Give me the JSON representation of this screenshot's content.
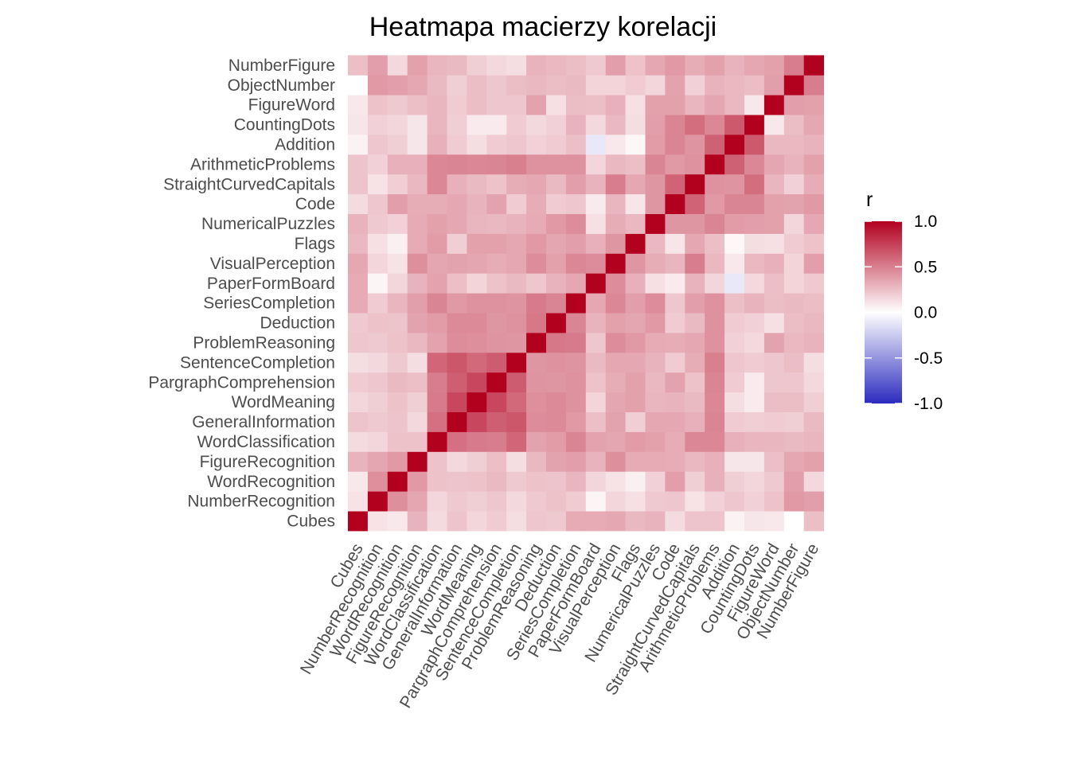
{
  "chart_data": {
    "type": "heatmap",
    "title": "Heatmapa macierzy korelacji",
    "xlabel": "",
    "ylabel": "",
    "variables": [
      "Cubes",
      "NumberRecognition",
      "WordRecognition",
      "FigureRecognition",
      "WordClassification",
      "GeneralInformation",
      "WordMeaning",
      "PargraphComprehension",
      "SentenceCompletion",
      "ProblemReasoning",
      "Deduction",
      "SeriesCompletion",
      "PaperFormBoard",
      "VisualPerception",
      "Flags",
      "NumericalPuzzles",
      "Code",
      "StraightCurvedCapitals",
      "ArithmeticProblems",
      "Addition",
      "CountingDots",
      "FigureWord",
      "ObjectNumber",
      "NumberFigure"
    ],
    "values": [
      [
        1.0,
        0.11,
        0.09,
        0.3,
        0.14,
        0.23,
        0.16,
        0.2,
        0.13,
        0.22,
        0.21,
        0.33,
        0.33,
        0.34,
        0.28,
        0.3,
        0.14,
        0.23,
        0.23,
        0.05,
        0.1,
        0.09,
        0.0,
        0.25
      ],
      [
        0.11,
        1.0,
        0.44,
        0.35,
        0.16,
        0.21,
        0.19,
        0.22,
        0.15,
        0.21,
        0.24,
        0.2,
        0.04,
        0.16,
        0.12,
        0.21,
        0.22,
        0.11,
        0.18,
        0.22,
        0.18,
        0.24,
        0.4,
        0.38
      ],
      [
        0.09,
        0.44,
        1.0,
        0.4,
        0.24,
        0.23,
        0.24,
        0.27,
        0.21,
        0.24,
        0.23,
        0.29,
        0.16,
        0.11,
        0.06,
        0.18,
        0.38,
        0.19,
        0.31,
        0.19,
        0.16,
        0.21,
        0.38,
        0.15
      ],
      [
        0.3,
        0.35,
        0.4,
        1.0,
        0.24,
        0.15,
        0.19,
        0.25,
        0.13,
        0.28,
        0.36,
        0.38,
        0.3,
        0.44,
        0.33,
        0.33,
        0.32,
        0.28,
        0.31,
        0.1,
        0.1,
        0.25,
        0.34,
        0.37
      ],
      [
        0.14,
        0.16,
        0.24,
        0.24,
        1.0,
        0.56,
        0.52,
        0.51,
        0.6,
        0.36,
        0.39,
        0.48,
        0.36,
        0.35,
        0.39,
        0.37,
        0.32,
        0.47,
        0.47,
        0.31,
        0.29,
        0.29,
        0.27,
        0.29
      ],
      [
        0.23,
        0.21,
        0.23,
        0.15,
        0.56,
        1.0,
        0.72,
        0.63,
        0.66,
        0.45,
        0.46,
        0.4,
        0.25,
        0.36,
        0.19,
        0.34,
        0.34,
        0.31,
        0.48,
        0.2,
        0.19,
        0.2,
        0.19,
        0.27
      ],
      [
        0.16,
        0.19,
        0.24,
        0.19,
        0.52,
        0.72,
        1.0,
        0.72,
        0.59,
        0.44,
        0.46,
        0.43,
        0.17,
        0.35,
        0.37,
        0.29,
        0.3,
        0.27,
        0.47,
        0.13,
        0.08,
        0.26,
        0.26,
        0.19
      ],
      [
        0.2,
        0.22,
        0.27,
        0.25,
        0.51,
        0.63,
        0.72,
        1.0,
        0.64,
        0.42,
        0.41,
        0.43,
        0.24,
        0.32,
        0.37,
        0.28,
        0.36,
        0.24,
        0.48,
        0.2,
        0.08,
        0.22,
        0.22,
        0.15
      ],
      [
        0.13,
        0.15,
        0.21,
        0.13,
        0.6,
        0.66,
        0.59,
        0.64,
        1.0,
        0.41,
        0.43,
        0.42,
        0.27,
        0.34,
        0.34,
        0.3,
        0.2,
        0.32,
        0.5,
        0.22,
        0.2,
        0.22,
        0.26,
        0.13
      ],
      [
        0.22,
        0.21,
        0.24,
        0.28,
        0.36,
        0.45,
        0.44,
        0.42,
        0.41,
        1.0,
        0.53,
        0.52,
        0.22,
        0.45,
        0.4,
        0.33,
        0.32,
        0.34,
        0.43,
        0.18,
        0.15,
        0.36,
        0.28,
        0.3
      ],
      [
        0.21,
        0.24,
        0.23,
        0.36,
        0.39,
        0.46,
        0.46,
        0.41,
        0.43,
        0.53,
        1.0,
        0.48,
        0.3,
        0.37,
        0.35,
        0.4,
        0.2,
        0.27,
        0.43,
        0.2,
        0.18,
        0.12,
        0.26,
        0.28
      ],
      [
        0.33,
        0.2,
        0.29,
        0.38,
        0.48,
        0.4,
        0.43,
        0.43,
        0.42,
        0.52,
        0.48,
        1.0,
        0.34,
        0.47,
        0.38,
        0.45,
        0.22,
        0.38,
        0.43,
        0.25,
        0.3,
        0.26,
        0.27,
        0.26
      ],
      [
        0.33,
        0.04,
        0.16,
        0.3,
        0.36,
        0.25,
        0.17,
        0.24,
        0.27,
        0.22,
        0.3,
        0.34,
        1.0,
        0.45,
        0.31,
        0.12,
        0.08,
        0.3,
        0.16,
        -0.11,
        0.15,
        0.25,
        0.17,
        0.21
      ],
      [
        0.34,
        0.16,
        0.11,
        0.44,
        0.35,
        0.36,
        0.35,
        0.32,
        0.34,
        0.45,
        0.37,
        0.47,
        0.45,
        1.0,
        0.41,
        0.32,
        0.29,
        0.51,
        0.28,
        0.09,
        0.28,
        0.31,
        0.17,
        0.38
      ],
      [
        0.28,
        0.12,
        0.06,
        0.33,
        0.39,
        0.19,
        0.37,
        0.37,
        0.34,
        0.4,
        0.35,
        0.38,
        0.31,
        0.41,
        1.0,
        0.28,
        0.1,
        0.34,
        0.25,
        0.03,
        0.13,
        0.12,
        0.2,
        0.24
      ],
      [
        0.3,
        0.21,
        0.18,
        0.33,
        0.37,
        0.34,
        0.29,
        0.28,
        0.3,
        0.33,
        0.4,
        0.45,
        0.12,
        0.32,
        0.28,
        1.0,
        0.41,
        0.41,
        0.48,
        0.39,
        0.38,
        0.37,
        0.16,
        0.34
      ],
      [
        0.14,
        0.22,
        0.38,
        0.32,
        0.32,
        0.34,
        0.3,
        0.36,
        0.2,
        0.32,
        0.2,
        0.22,
        0.08,
        0.29,
        0.1,
        0.41,
        1.0,
        0.61,
        0.4,
        0.48,
        0.48,
        0.37,
        0.36,
        0.4
      ],
      [
        0.23,
        0.11,
        0.19,
        0.28,
        0.47,
        0.31,
        0.27,
        0.24,
        0.32,
        0.34,
        0.27,
        0.38,
        0.3,
        0.51,
        0.34,
        0.41,
        0.61,
        1.0,
        0.43,
        0.42,
        0.57,
        0.29,
        0.18,
        0.32
      ],
      [
        0.23,
        0.18,
        0.31,
        0.31,
        0.47,
        0.48,
        0.47,
        0.48,
        0.5,
        0.43,
        0.43,
        0.43,
        0.16,
        0.28,
        0.25,
        0.48,
        0.4,
        0.43,
        1.0,
        0.62,
        0.47,
        0.35,
        0.3,
        0.37
      ],
      [
        0.05,
        0.22,
        0.19,
        0.1,
        0.31,
        0.2,
        0.13,
        0.2,
        0.22,
        0.18,
        0.2,
        0.25,
        -0.11,
        0.09,
        0.03,
        0.39,
        0.48,
        0.42,
        0.62,
        1.0,
        0.65,
        0.28,
        0.28,
        0.3
      ],
      [
        0.1,
        0.18,
        0.16,
        0.1,
        0.29,
        0.19,
        0.08,
        0.08,
        0.2,
        0.15,
        0.18,
        0.3,
        0.15,
        0.28,
        0.13,
        0.38,
        0.48,
        0.57,
        0.47,
        0.65,
        1.0,
        0.09,
        0.26,
        0.34
      ],
      [
        0.09,
        0.24,
        0.21,
        0.25,
        0.29,
        0.2,
        0.26,
        0.22,
        0.22,
        0.36,
        0.12,
        0.26,
        0.25,
        0.31,
        0.12,
        0.37,
        0.37,
        0.29,
        0.35,
        0.28,
        0.09,
        1.0,
        0.38,
        0.37
      ],
      [
        0.0,
        0.4,
        0.38,
        0.34,
        0.27,
        0.19,
        0.26,
        0.22,
        0.26,
        0.28,
        0.26,
        0.27,
        0.17,
        0.17,
        0.2,
        0.16,
        0.36,
        0.18,
        0.3,
        0.28,
        0.26,
        0.38,
        1.0,
        0.51
      ],
      [
        0.25,
        0.38,
        0.15,
        0.37,
        0.29,
        0.27,
        0.19,
        0.15,
        0.13,
        0.3,
        0.28,
        0.26,
        0.21,
        0.38,
        0.24,
        0.34,
        0.4,
        0.32,
        0.37,
        0.3,
        0.34,
        0.37,
        0.51,
        1.0
      ]
    ],
    "color_scale": {
      "low": "#2b2bbf",
      "mid": "#ffffff",
      "high": "#b2001f",
      "limits": [
        -1,
        1
      ]
    },
    "legend": {
      "title": "r",
      "placement": "right",
      "ticks": [
        "1.0",
        "0.5",
        "0.0",
        "-0.5",
        "-1.0"
      ]
    },
    "grid": false
  }
}
